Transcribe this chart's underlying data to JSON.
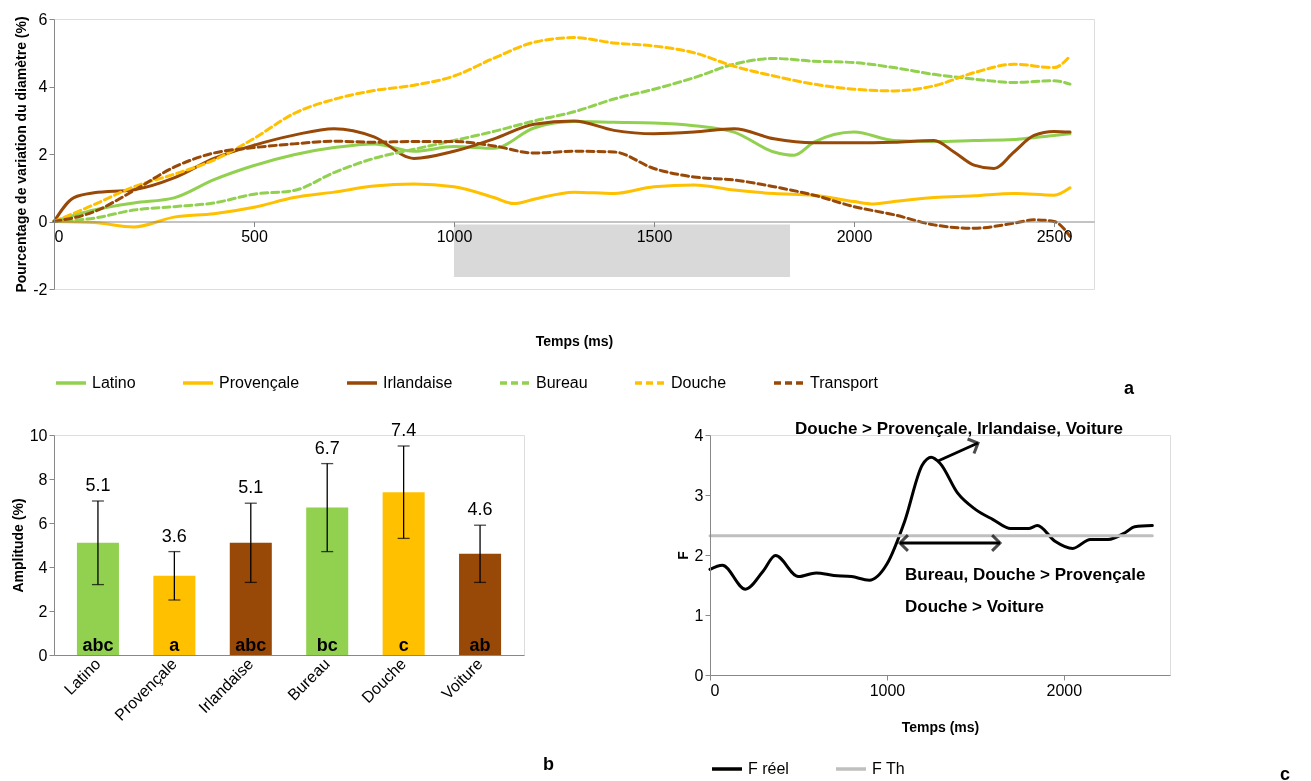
{
  "chart_data": [
    {
      "type": "line",
      "xlabel": "Temps (ms)",
      "ylabel": "Pourcentage de variation du diamètre (%)",
      "xlim": [
        0,
        2600
      ],
      "ylim": [
        -2,
        6
      ],
      "xticks": [
        0,
        500,
        1000,
        1500,
        2000,
        2500
      ],
      "yticks": [
        -2,
        0,
        2,
        4,
        6
      ],
      "grid": false,
      "legend": "bottom",
      "bands": [
        {
          "axis": "x",
          "from": 1000,
          "to": 1840,
          "label": null,
          "color": "#d9d9d9"
        }
      ],
      "annotations": [
        "a"
      ],
      "series": [
        {
          "name": "Latino",
          "color": "#92d050",
          "line_style": "solid",
          "x": [
            0,
            100,
            200,
            300,
            400,
            500,
            600,
            700,
            800,
            900,
            1000,
            1100,
            1200,
            1300,
            1400,
            1500,
            1600,
            1700,
            1800,
            1850,
            1900,
            2000,
            2100,
            2200,
            2300,
            2400,
            2500,
            2540
          ],
          "values": [
            0,
            0.34,
            0.55,
            0.7,
            1.24,
            1.66,
            1.98,
            2.19,
            2.3,
            2.08,
            2.22,
            2.17,
            2.77,
            2.96,
            2.94,
            2.92,
            2.84,
            2.65,
            2.06,
            1.96,
            2.35,
            2.65,
            2.4,
            2.37,
            2.4,
            2.43,
            2.55,
            2.6
          ]
        },
        {
          "name": "Provençale",
          "color": "#ffc000",
          "line_style": "solid",
          "x": [
            0,
            100,
            200,
            300,
            400,
            500,
            600,
            700,
            800,
            900,
            1000,
            1100,
            1150,
            1200,
            1300,
            1400,
            1500,
            1600,
            1700,
            1800,
            1900,
            2000,
            2050,
            2100,
            2200,
            2300,
            2400,
            2500,
            2540
          ],
          "values": [
            0,
            -0.03,
            -0.16,
            0.13,
            0.23,
            0.42,
            0.71,
            0.87,
            1.05,
            1.11,
            1.03,
            0.71,
            0.53,
            0.66,
            0.87,
            0.83,
            1.03,
            1.08,
            0.93,
            0.83,
            0.78,
            0.59,
            0.52,
            0.59,
            0.71,
            0.76,
            0.83,
            0.78,
            1.0
          ]
        },
        {
          "name": "Irlandaise",
          "color": "#984807",
          "line_style": "solid",
          "x": [
            0,
            50,
            100,
            200,
            300,
            400,
            500,
            600,
            700,
            800,
            900,
            1000,
            1100,
            1200,
            1300,
            1400,
            1500,
            1600,
            1700,
            1800,
            1900,
            2000,
            2100,
            2200,
            2250,
            2300,
            2350,
            2400,
            2450,
            2500,
            2540
          ],
          "values": [
            0,
            0.71,
            0.85,
            0.94,
            1.29,
            1.87,
            2.26,
            2.56,
            2.75,
            2.51,
            1.87,
            2.08,
            2.45,
            2.88,
            2.98,
            2.7,
            2.6,
            2.65,
            2.75,
            2.45,
            2.33,
            2.33,
            2.35,
            2.4,
            2.06,
            1.67,
            1.57,
            2.06,
            2.55,
            2.67,
            2.65
          ]
        },
        {
          "name": "Bureau",
          "color": "#92d050",
          "line_style": "dashed",
          "x": [
            0,
            100,
            200,
            300,
            400,
            500,
            600,
            700,
            800,
            900,
            1000,
            1100,
            1200,
            1300,
            1400,
            1500,
            1600,
            1700,
            1800,
            1900,
            2000,
            2100,
            2200,
            2300,
            2400,
            2500,
            2540
          ],
          "values": [
            0,
            0.1,
            0.34,
            0.44,
            0.55,
            0.81,
            0.92,
            1.45,
            1.87,
            2.14,
            2.4,
            2.67,
            2.98,
            3.25,
            3.63,
            3.92,
            4.26,
            4.66,
            4.83,
            4.75,
            4.71,
            4.56,
            4.36,
            4.22,
            4.12,
            4.17,
            4.07
          ]
        },
        {
          "name": "Douche",
          "color": "#ffc000",
          "line_style": "dashed",
          "x": [
            0,
            100,
            200,
            300,
            400,
            500,
            600,
            700,
            800,
            900,
            1000,
            1100,
            1200,
            1300,
            1400,
            1500,
            1600,
            1700,
            1800,
            1900,
            2000,
            2100,
            2200,
            2300,
            2400,
            2500,
            2540
          ],
          "values": [
            0,
            0.5,
            1.03,
            1.4,
            1.82,
            2.46,
            3.2,
            3.62,
            3.88,
            4.04,
            4.31,
            4.84,
            5.31,
            5.45,
            5.29,
            5.2,
            5.0,
            4.6,
            4.31,
            4.07,
            3.92,
            3.87,
            4.02,
            4.41,
            4.66,
            4.56,
            4.9
          ]
        },
        {
          "name": "Transport",
          "color": "#984807",
          "line_style": "dashed",
          "x": [
            0,
            100,
            200,
            300,
            400,
            500,
            600,
            700,
            800,
            900,
            1000,
            1100,
            1200,
            1300,
            1400,
            1500,
            1600,
            1700,
            1800,
            1900,
            2000,
            2100,
            2200,
            2300,
            2400,
            2450,
            2500,
            2540
          ],
          "values": [
            0,
            0.29,
            0.92,
            1.61,
            2.03,
            2.19,
            2.3,
            2.38,
            2.35,
            2.37,
            2.37,
            2.24,
            2.03,
            2.08,
            2.06,
            1.57,
            1.32,
            1.23,
            1.03,
            0.78,
            0.44,
            0.2,
            -0.1,
            -0.2,
            -0.05,
            0.05,
            0,
            -0.44
          ]
        }
      ]
    },
    {
      "type": "bar",
      "ylabel": "Amplitude (%)",
      "categories": [
        "Latino",
        "Provençale",
        "Irlandaise",
        "Bureau",
        "Douche",
        "Voiture"
      ],
      "values": [
        5.1,
        3.6,
        5.1,
        6.7,
        7.4,
        4.6
      ],
      "colors": [
        "#92d050",
        "#ffc000",
        "#984807",
        "#92d050",
        "#ffc000",
        "#984807"
      ],
      "errors": [
        [
          3.2,
          7.0
        ],
        [
          2.5,
          4.7
        ],
        [
          3.3,
          6.9
        ],
        [
          4.7,
          8.7
        ],
        [
          5.3,
          9.5
        ],
        [
          3.3,
          5.9
        ]
      ],
      "data_labels": true,
      "ylim": [
        0,
        10
      ],
      "yticks": [
        0,
        2,
        4,
        6,
        8,
        10
      ],
      "grid": false,
      "annotations": [
        {
          "text": "abc",
          "x": "Latino",
          "y": 0
        },
        {
          "text": "a",
          "x": "Provençale",
          "y": 0
        },
        {
          "text": "abc",
          "x": "Irlandaise",
          "y": 0
        },
        {
          "text": "bc",
          "x": "Bureau",
          "y": 0
        },
        {
          "text": "c",
          "x": "Douche",
          "y": 0
        },
        {
          "text": "ab",
          "x": "Voiture",
          "y": 0
        },
        "b"
      ]
    },
    {
      "type": "line",
      "xlabel": "Temps (ms)",
      "ylabel": "F",
      "xlim": [
        0,
        2600
      ],
      "ylim": [
        0,
        4
      ],
      "xticks": [
        0,
        1000,
        2000
      ],
      "yticks": [
        0,
        1,
        2,
        3,
        4
      ],
      "grid": false,
      "legend": "bottom",
      "annotations": [
        "Douche > Provençale, Irlandaise, Voiture",
        "Bureau, Douche > Provençale",
        "Douche > Voiture",
        "c"
      ],
      "series": [
        {
          "name": "F réel",
          "color": "#000000",
          "line_style": "solid",
          "x": [
            0,
            70,
            200,
            300,
            370,
            500,
            600,
            700,
            800,
            900,
            1000,
            1100,
            1200,
            1250,
            1300,
            1400,
            1500,
            1600,
            1700,
            1800,
            1850,
            1950,
            2050,
            2150,
            2250,
            2350,
            2400,
            2500
          ],
          "values": [
            1.76,
            1.83,
            1.43,
            1.73,
            1.99,
            1.64,
            1.7,
            1.66,
            1.64,
            1.58,
            1.85,
            2.56,
            3.5,
            3.63,
            3.53,
            3.03,
            2.76,
            2.59,
            2.44,
            2.44,
            2.49,
            2.23,
            2.11,
            2.26,
            2.26,
            2.38,
            2.47,
            2.49
          ]
        },
        {
          "name": "F Th",
          "color": "#bfbfbf",
          "line_style": "solid",
          "x": [
            0,
            2500
          ],
          "values": [
            2.32,
            2.32
          ]
        }
      ]
    }
  ]
}
